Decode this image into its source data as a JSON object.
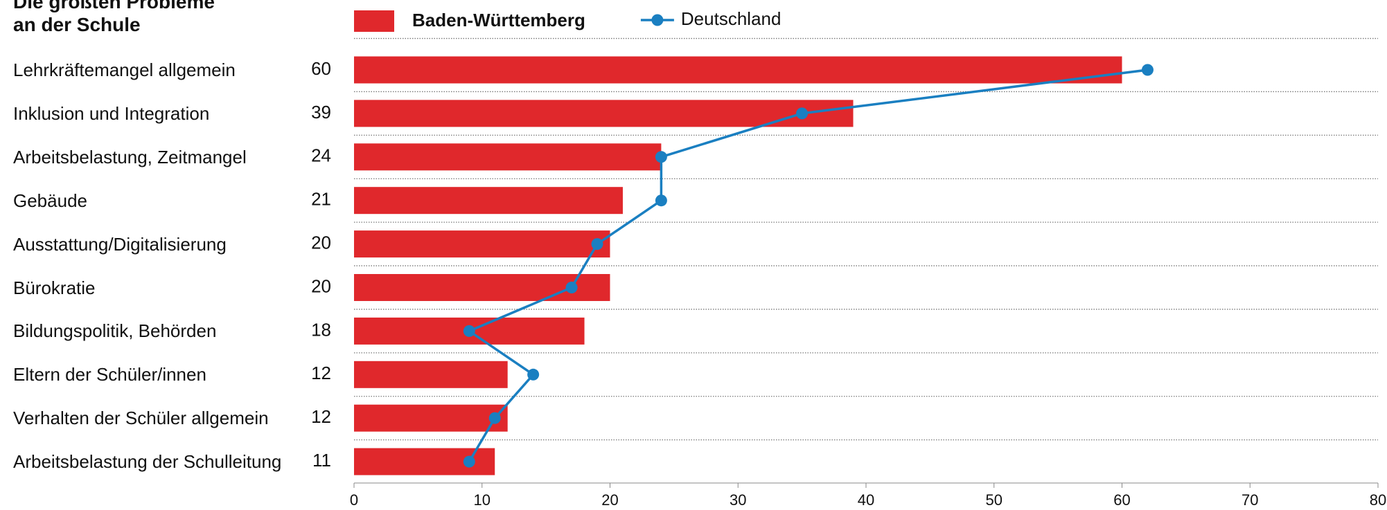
{
  "chart_data": {
    "type": "bar",
    "title": "Die größten Probleme an der Schule",
    "categories": [
      "Lehrkräftemangel allgemein",
      "Inklusion und Integration",
      "Arbeitsbelastung, Zeitmangel",
      "Gebäude",
      "Ausstattung/Digitalisierung",
      "Bürokratie",
      "Bildungspolitik, Behörden",
      "Eltern der Schüler/innen",
      "Verhalten der Schüler allgemein",
      "Arbeitsbelastung der Schulleitung"
    ],
    "series": [
      {
        "name": "Baden-Württemberg",
        "type": "bar",
        "color": "#e0282c",
        "values": [
          60,
          39,
          24,
          21,
          20,
          20,
          18,
          12,
          12,
          11
        ]
      },
      {
        "name": "Deutschland",
        "type": "line",
        "color": "#1a7fc1",
        "values": [
          62,
          35,
          24,
          24,
          19,
          17,
          9,
          14,
          11,
          9
        ]
      }
    ],
    "xlim": [
      0,
      80
    ],
    "xticks": [
      0,
      10,
      20,
      30,
      40,
      50,
      60,
      70,
      80
    ]
  }
}
